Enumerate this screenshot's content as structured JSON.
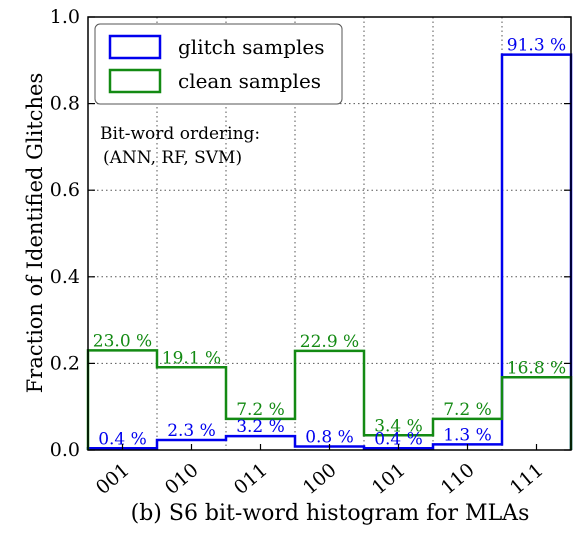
{
  "chart_data": {
    "type": "bar",
    "subtype": "step-histogram",
    "categories": [
      "001",
      "010",
      "011",
      "100",
      "101",
      "110",
      "111"
    ],
    "series": [
      {
        "name": "glitch samples",
        "color": "#0000ee",
        "values": [
          0.004,
          0.023,
          0.032,
          0.008,
          0.004,
          0.013,
          0.913
        ],
        "labels": [
          "0.4 %",
          "2.3 %",
          "3.2 %",
          "0.8 %",
          "0.4 %",
          "1.3 %",
          "91.3 %"
        ]
      },
      {
        "name": "clean samples",
        "color": "#138a13",
        "values": [
          0.23,
          0.191,
          0.072,
          0.229,
          0.034,
          0.072,
          0.168
        ],
        "labels": [
          "23.0 %",
          "19.1 %",
          "7.2 %",
          "22.9 %",
          "3.4 %",
          "7.2 %",
          "16.8 %"
        ]
      }
    ],
    "ylabel": "Fraction of Identified Glitches",
    "xlabel": "",
    "ylim": [
      0,
      1.0
    ],
    "yticks": [
      "0.0",
      "0.2",
      "0.4",
      "0.6",
      "0.8",
      "1.0"
    ],
    "grid": true,
    "legend": "top-left",
    "annotation": [
      "Bit-word ordering:",
      "(ANN, RF, SVM)"
    ],
    "caption": "(b) S6 bit-word histogram for MLAs"
  }
}
